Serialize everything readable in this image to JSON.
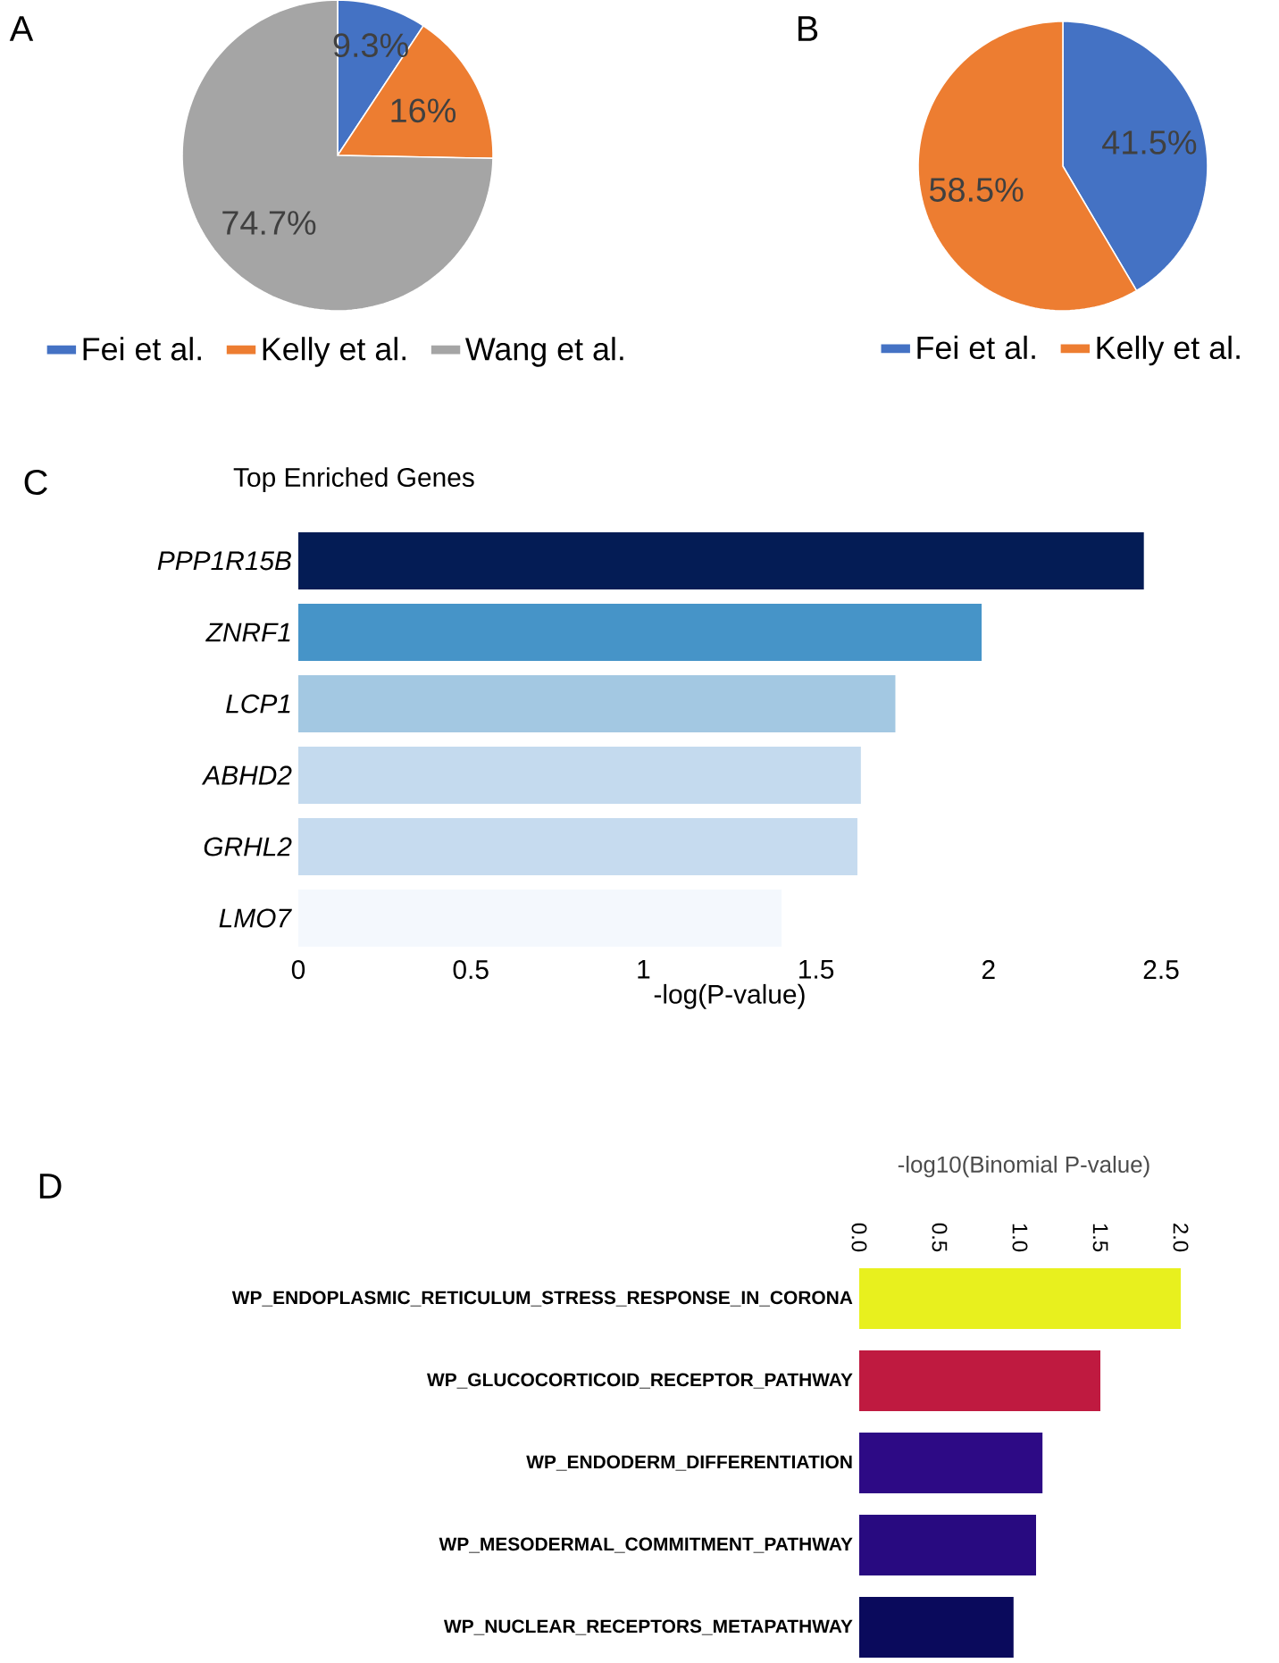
{
  "chart_data": [
    {
      "type": "pie",
      "annotations": [
        "A"
      ],
      "categories": [
        "Fei et al.",
        "Kelly et al.",
        "Wang et al."
      ],
      "values": [
        9.3,
        16,
        74.7
      ],
      "value_labels": [
        "9.3%",
        "16%",
        "74.7%"
      ],
      "colors": [
        "#4472c4",
        "#ed7d31",
        "#a5a5a5"
      ],
      "legend": "bottom"
    },
    {
      "type": "pie",
      "annotations": [
        "B"
      ],
      "categories": [
        "Fei et al.",
        "Kelly et al."
      ],
      "values": [
        41.5,
        58.5
      ],
      "value_labels": [
        "41.5%",
        "58.5%"
      ],
      "colors": [
        "#4472c4",
        "#ed7d31"
      ],
      "legend": "bottom"
    },
    {
      "type": "bar",
      "orientation": "horizontal",
      "annotations": [
        "C"
      ],
      "title": "Top Enriched Genes",
      "xlabel": "-log(P-value)",
      "categories": [
        "*PPP1R15B*",
        "*ZNRF1*",
        "*LCP1*",
        "*ABHD2*",
        "*GRHL2*",
        "*LMO7*"
      ],
      "values": [
        2.45,
        1.98,
        1.73,
        1.63,
        1.62,
        1.4
      ],
      "colors": [
        "#041c55",
        "#4694c8",
        "#a3c8e2",
        "#c4daee",
        "#c6dbef",
        "#f4f8fd"
      ],
      "xlim": [
        0,
        2.5
      ],
      "xticks": [
        0,
        0.5,
        1,
        1.5,
        2,
        2.5
      ]
    },
    {
      "type": "bar",
      "orientation": "horizontal",
      "annotations": [
        "D"
      ],
      "xlabel": "-log10(Binomial P-value)",
      "categories": [
        "WP_ENDOPLASMIC_RETICULUM_STRESS_RESPONSE_IN_CORONA",
        "WP_GLUCOCORTICOID_RECEPTOR_PATHWAY",
        "WP_ENDODERM_DIFFERENTIATION",
        "WP_MESODERMAL_COMMITMENT_PATHWAY",
        "WP_NUCLEAR_RECEPTORS_METAPATHWAY"
      ],
      "values": [
        2.0,
        1.5,
        1.14,
        1.1,
        0.96
      ],
      "colors": [
        "#e8f01e",
        "#bf1a40",
        "#2d0a85",
        "#280a80",
        "#0a0a5c"
      ],
      "xlim": [
        0,
        2.05
      ],
      "xticks": [
        {
          "value": 0,
          "label": "0.0"
        },
        {
          "value": 0.5,
          "label": "0.5"
        },
        {
          "value": 1,
          "label": "1.0"
        },
        {
          "value": 1.5,
          "label": "1.5"
        },
        {
          "value": 2,
          "label": "2.0"
        }
      ]
    }
  ]
}
